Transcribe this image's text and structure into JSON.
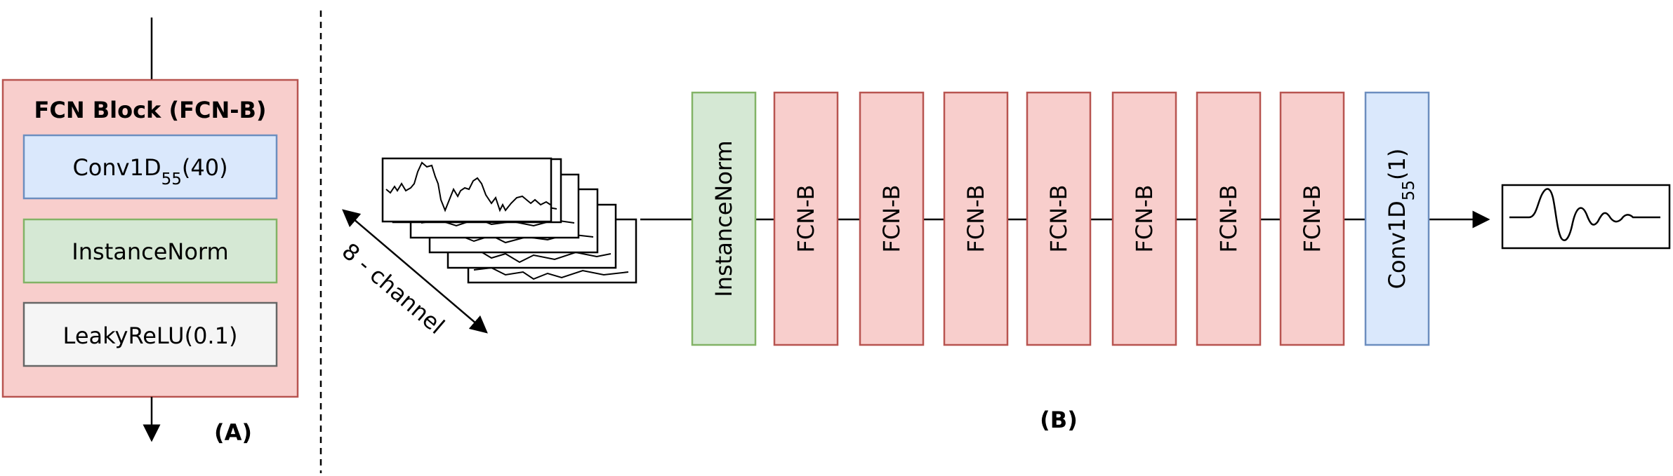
{
  "panel_a": {
    "title": "FCN Block (FCN-B)",
    "conv": {
      "base": "Conv1D",
      "sub": "55",
      "suffix": "(40)"
    },
    "norm": "InstanceNorm",
    "activation": "LeakyReLU(0.1)",
    "label": "(A)"
  },
  "panel_b": {
    "input_label": "8 - channel",
    "norm": "InstanceNorm",
    "blocks": [
      "FCN-B",
      "FCN-B",
      "FCN-B",
      "FCN-B",
      "FCN-B",
      "FCN-B",
      "FCN-B"
    ],
    "conv": {
      "base": "Conv1D",
      "sub": "55",
      "suffix": "(1)"
    },
    "label": "(B)"
  },
  "colors": {
    "fcn_fill": "#f8cecc",
    "fcn_stroke": "#b85450",
    "conv_fill": "#dae8fc",
    "conv_stroke": "#6c8ebf",
    "norm_fill": "#d5e8d4",
    "norm_stroke": "#82b366",
    "act_fill": "#f5f5f5",
    "act_stroke": "#666666"
  }
}
